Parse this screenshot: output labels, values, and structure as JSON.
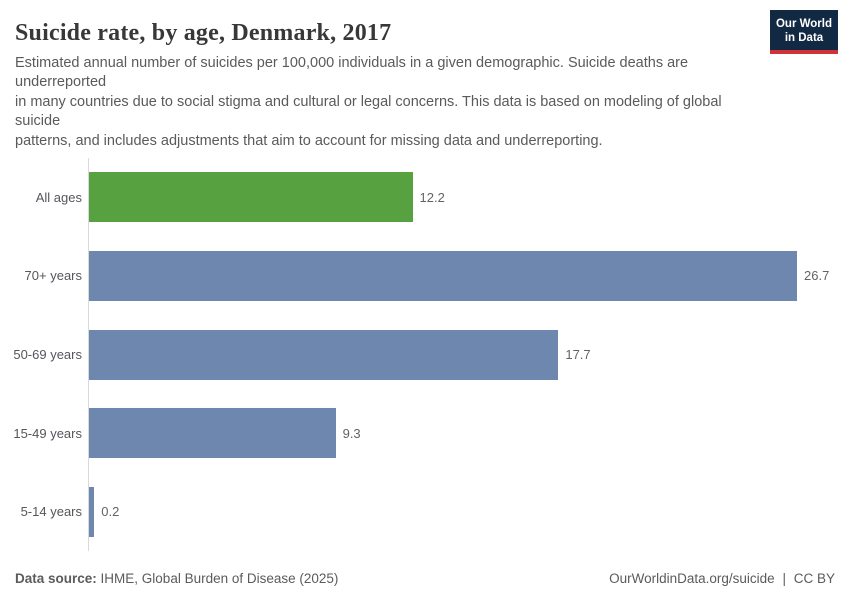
{
  "header": {
    "title": "Suicide rate, by age, Denmark, 2017",
    "logo": {
      "line1": "Our World",
      "line2": "in Data"
    }
  },
  "subtitle_lines": [
    "Estimated annual number of suicides per 100,000 individuals in a given demographic. Suicide deaths are",
    "underreported",
    "in many countries due to social stigma and cultural or legal concerns. This data is based on modeling of global",
    "suicide",
    "patterns, and includes adjustments that aim to account for missing data and underreporting."
  ],
  "chart_data": {
    "type": "bar",
    "orientation": "horizontal",
    "title": "Suicide rate, by age, Denmark, 2017",
    "categories": [
      "All ages",
      "70+ years",
      "50-69 years",
      "15-49 years",
      "5-14 years"
    ],
    "values": [
      12.2,
      26.7,
      17.7,
      9.3,
      0.2
    ],
    "value_labels": [
      "12.2",
      "26.7",
      "17.7",
      "9.3",
      "0.2"
    ],
    "bar_colors": [
      "#58a140",
      "#6e87ae",
      "#6e87ae",
      "#6e87ae",
      "#6e87ae"
    ],
    "xlabel": "",
    "ylabel": "",
    "xlim": [
      0,
      26.7
    ],
    "grid": false,
    "legend": false,
    "units": "suicides per 100,000 individuals"
  },
  "footer": {
    "datasource_label": "Data source:",
    "datasource_value": "IHME, Global Burden of Disease (2025)",
    "url": "OurWorldinData.org/suicide",
    "separator": "|",
    "license": "CC BY"
  },
  "colors": {
    "accent_green": "#58a140",
    "accent_blue": "#6e87ae",
    "logo_navy": "#122944",
    "logo_red": "#cf3339",
    "axis_line": "#d9d9d9"
  }
}
